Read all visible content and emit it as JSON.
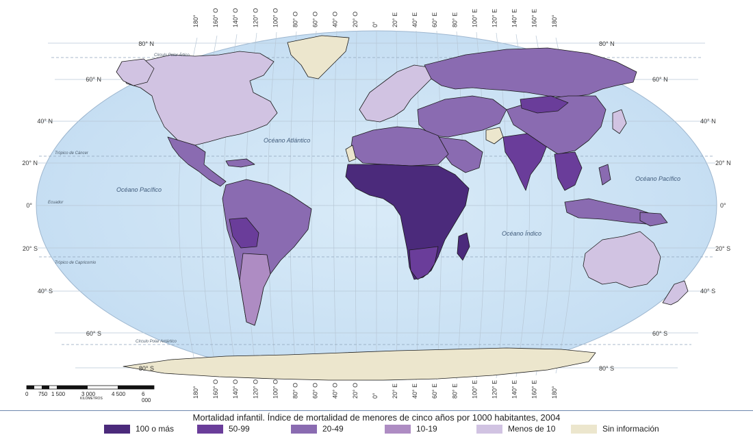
{
  "title": "Mortalidad infantil. Índice de mortalidad de menores de cinco años por 1000 habitantes, 2004",
  "legend": [
    {
      "label": "100 o más",
      "color": "#4b2a7b"
    },
    {
      "label": "50-99",
      "color": "#6a3d9a"
    },
    {
      "label": "20-49",
      "color": "#8a6bb1"
    },
    {
      "label": "10-19",
      "color": "#ae8cc3"
    },
    {
      "label": "Menos de 10",
      "color": "#d1c3e2"
    },
    {
      "label": "Sin información",
      "color": "#ece6cd"
    }
  ],
  "longitude_labels": [
    "180°",
    "160° O",
    "140° O",
    "120° O",
    "100° O",
    "80° O",
    "60° O",
    "40° O",
    "20° O",
    "0°",
    "20° E",
    "40° E",
    "60° E",
    "80° E",
    "100° E",
    "120° E",
    "140° E",
    "160° E",
    "180°"
  ],
  "latitude_labels": {
    "left": [
      "80° N",
      "60° N",
      "40° N",
      "20° N",
      "0°",
      "20° S",
      "40° S",
      "60° S",
      "80° S"
    ],
    "right": [
      "80° N",
      "60° N",
      "40° N",
      "20° N",
      "0°",
      "20° S",
      "40° S",
      "60° S",
      "80° S"
    ]
  },
  "oceans": [
    {
      "name": "Océano Atlántico"
    },
    {
      "name": "Océano Pacífico"
    },
    {
      "name": "Océano Pacífico"
    },
    {
      "name": "Océano Índico"
    }
  ],
  "circles": {
    "arctic": "Círculo Polar Ártico",
    "cancer": "Trópico de Cáncer",
    "equator": "Ecuador",
    "capricorn": "Trópico de Capricornio",
    "antarctic": "Círculo Polar Antártico"
  },
  "scale": {
    "ticks": [
      "0",
      "750",
      "1 500",
      "3 000",
      "4 500",
      "6 000"
    ],
    "unit": "KILÓMETROS"
  },
  "colors": {
    "ocean": "#d9ebf8",
    "graticule": "#b7c7d6",
    "border": "#1a1a1a"
  }
}
